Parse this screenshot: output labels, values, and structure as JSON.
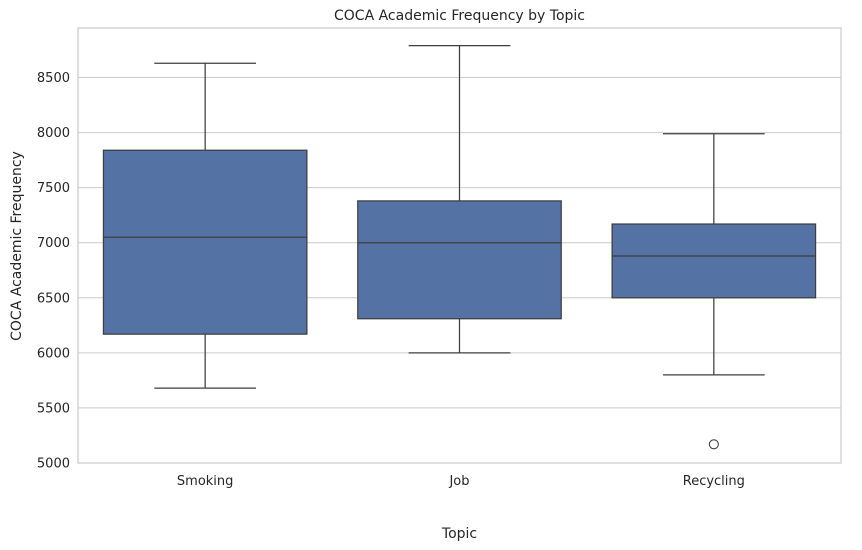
{
  "chart_data": {
    "type": "box",
    "title": "COCA Academic Frequency by Topic",
    "xlabel": "Topic",
    "ylabel": "COCA Academic Frequency",
    "ylim": [
      5000,
      8950
    ],
    "yticks": [
      5000,
      5500,
      6000,
      6500,
      7000,
      7500,
      8000,
      8500
    ],
    "grid": true,
    "box_color": "#5572a5",
    "line_color": "#3f3f3f",
    "categories": [
      "Smoking",
      "Job",
      "Recycling"
    ],
    "boxes": [
      {
        "category": "Smoking",
        "whisker_low": 5680,
        "q1": 6170,
        "median": 7050,
        "q3": 7840,
        "whisker_high": 8630,
        "outliers": []
      },
      {
        "category": "Job",
        "whisker_low": 6000,
        "q1": 6310,
        "median": 7000,
        "q3": 7380,
        "whisker_high": 8790,
        "outliers": []
      },
      {
        "category": "Recycling",
        "whisker_low": 5800,
        "q1": 6500,
        "median": 6880,
        "q3": 7170,
        "whisker_high": 7990,
        "outliers": [
          5170
        ]
      }
    ]
  }
}
